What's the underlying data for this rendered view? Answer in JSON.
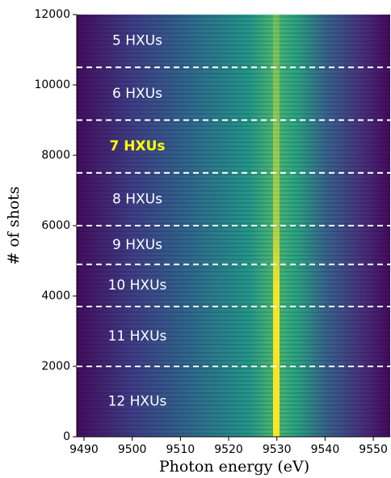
{
  "chart_data": {
    "type": "heatmap",
    "xlabel": "Photon energy (eV)",
    "ylabel": "# of shots",
    "xlim": [
      9488.5,
      9553.5
    ],
    "xticks": [
      9490,
      9500,
      9510,
      9520,
      9530,
      9540,
      9550
    ],
    "ylim": [
      0,
      12000
    ],
    "yticks": [
      0,
      2000,
      4000,
      6000,
      8000,
      10000,
      12000
    ],
    "boundaries": [
      2000,
      3700,
      4900,
      6000,
      7500,
      9000,
      10500
    ],
    "boundary_color": "#ffffff",
    "segments": [
      {
        "label": "12 HXUs",
        "color": "#ffffff",
        "bold": false
      },
      {
        "label": "11 HXUs",
        "color": "#ffffff",
        "bold": false
      },
      {
        "label": "10 HXUs",
        "color": "#ffffff",
        "bold": false
      },
      {
        "label": "9 HXUs",
        "color": "#ffffff",
        "bold": false
      },
      {
        "label": "8 HXUs",
        "color": "#ffffff",
        "bold": false
      },
      {
        "label": "7 HXUs",
        "color": "#ffff00",
        "bold": true
      },
      {
        "label": "6 HXUs",
        "color": "#ffffff",
        "bold": false
      },
      {
        "label": "5 HXUs",
        "color": "#ffffff",
        "bold": false
      }
    ]
  }
}
